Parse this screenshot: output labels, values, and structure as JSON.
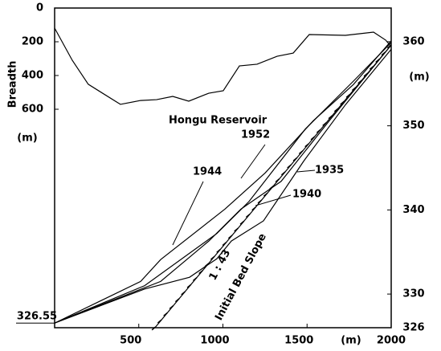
{
  "chart_data": {
    "type": "line",
    "ylabel": "Breadth",
    "yunit": "(m)",
    "y2unit": "(m)",
    "xunit": "(m)",
    "xlim": [
      0,
      2000
    ],
    "xticks": [
      500,
      1000,
      1500,
      2000
    ],
    "ylim": [
      0,
      1895
    ],
    "yticks": [
      0,
      200,
      400,
      600
    ],
    "y2lim": [
      326,
      364
    ],
    "y2ticks": [
      326,
      330,
      340,
      350,
      360
    ],
    "start_elevation": 326.55,
    "annotations": [
      "Hongu Reservoir",
      "1952",
      "1944",
      "1935",
      "1940",
      "1 : 43",
      "Initial Bed Slope"
    ],
    "series": [
      {
        "name": "Hongu Reservoir",
        "axis": "y",
        "color": "#000000",
        "x": [
          0,
          105,
          200,
          391,
          511,
          606,
          702,
          797,
          893,
          916,
          1002,
          1098,
          1203,
          1322,
          1418,
          1513,
          1728,
          1895,
          1967,
          2000
        ],
        "values": [
          119,
          310,
          452,
          571,
          548,
          543,
          524,
          552,
          514,
          505,
          490,
          343,
          333,
          286,
          267,
          157,
          162,
          143,
          190,
          229
        ]
      },
      {
        "name": "1935",
        "axis": "y2",
        "color": "#000000",
        "x": [
          0,
          535,
          802,
          964,
          1050,
          1241,
          1480,
          1728,
          2000
        ],
        "values": [
          326.55,
          330.6,
          332,
          334.2,
          336.3,
          338.7,
          345.8,
          352.5,
          359.1
        ]
      },
      {
        "name": "1940",
        "axis": "y2",
        "color": "#000000",
        "x": [
          0,
          630,
          916,
          1107,
          1346,
          1632,
          2000
        ],
        "values": [
          326.55,
          331.5,
          336.3,
          340.1,
          343.4,
          350.6,
          359.6
        ]
      },
      {
        "name": "1944",
        "axis": "y2",
        "color": "#000000",
        "x": [
          0,
          535,
          964,
          1155,
          1489,
          1775,
          2000
        ],
        "values": [
          326.55,
          331,
          337.2,
          341,
          349.6,
          355.3,
          359.9
        ]
      },
      {
        "name": "1952",
        "axis": "y2",
        "color": "#000000",
        "x": [
          0,
          511,
          630,
          1012,
          1251,
          1537,
          1775,
          2000
        ],
        "values": [
          326.55,
          331.5,
          334.1,
          340.1,
          344.4,
          350.6,
          354.9,
          360.1
        ]
      },
      {
        "name": "Initial Bed Slope",
        "axis": "y2",
        "color": "#000000",
        "x": [
          600,
          2000
        ],
        "values": [
          326.1,
          359.6
        ]
      }
    ]
  }
}
